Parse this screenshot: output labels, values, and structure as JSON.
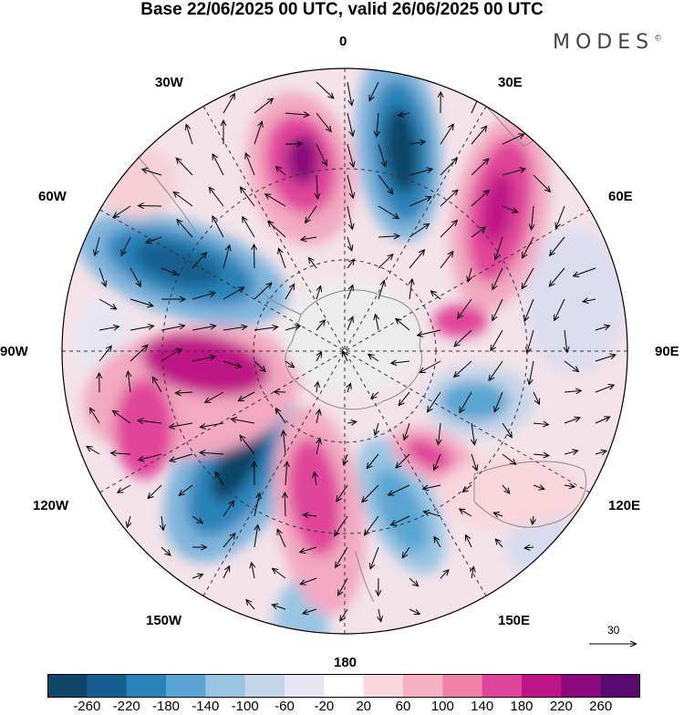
{
  "header": {
    "title": "Base 22/06/2025 00 UTC, valid 26/06/2025 00 UTC"
  },
  "brand": {
    "name": "MODES",
    "mark": "©"
  },
  "map": {
    "projection": "south polar stereographic",
    "longitude_labels": {
      "lon_0": "0",
      "lon_30e": "30E",
      "lon_60e": "60E",
      "lon_90e": "90E",
      "lon_120e": "120E",
      "lon_150e": "150E",
      "lon_180": "180",
      "lon_150w": "150W",
      "lon_120w": "120W",
      "lon_90w": "90W",
      "lon_60w": "60W",
      "lon_30w": "30W"
    },
    "wind_reference": {
      "value": "30"
    }
  },
  "legend": {
    "ticks": [
      "-260",
      "-220",
      "-180",
      "-140",
      "-100",
      "-60",
      "-20",
      "20",
      "60",
      "100",
      "140",
      "180",
      "220",
      "260"
    ],
    "colors": [
      "#0f4566",
      "#145f8f",
      "#2a83b8",
      "#5aa6d1",
      "#99c5e3",
      "#c6d4e8",
      "#e6e6f2",
      "#ffffff",
      "#f8d6dc",
      "#f4b1c3",
      "#ee82a9",
      "#e0449a",
      "#be1485",
      "#8a0a7c",
      "#5a0a6e"
    ]
  }
}
